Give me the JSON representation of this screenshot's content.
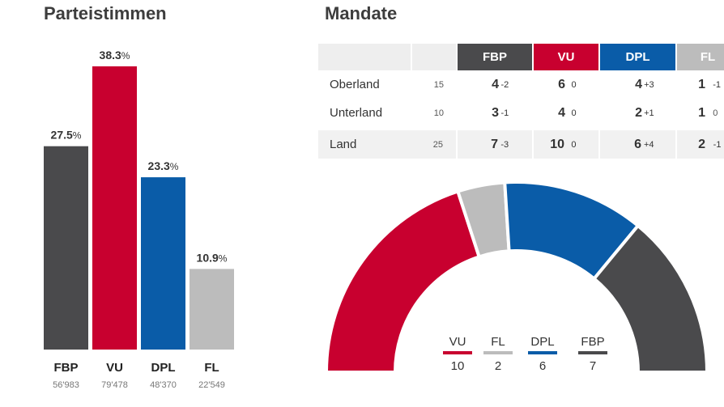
{
  "votes_title": "Parteistimmen",
  "mandate_title": "Mandate",
  "colors": {
    "FBP": "#4a4a4c",
    "VU": "#c8002f",
    "DPL": "#0a5ca8",
    "FL": "#bcbcbc"
  },
  "chart_data": [
    {
      "type": "bar",
      "title": "Parteistimmen",
      "categories": [
        "FBP",
        "VU",
        "DPL",
        "FL"
      ],
      "values": [
        27.5,
        38.3,
        23.3,
        10.9
      ],
      "value_unit": "%",
      "vote_counts": [
        "56'983",
        "79'478",
        "48'370",
        "22'549"
      ],
      "ylim": [
        0,
        38.3
      ],
      "grid": false,
      "legend": "none"
    },
    {
      "type": "pie",
      "title": "Mandate",
      "shape": "half-donut",
      "categories": [
        "VU",
        "FL",
        "DPL",
        "FBP"
      ],
      "values": [
        10,
        2,
        6,
        7
      ],
      "legend": "bottom-center"
    },
    {
      "type": "table",
      "title": "Mandate",
      "columns": [
        "FBP",
        "VU",
        "DPL",
        "FL"
      ],
      "rows": [
        {
          "region": "Oberland",
          "total": "15",
          "cells": [
            {
              "seats": "4",
              "change": "-2"
            },
            {
              "seats": "6",
              "change": "0"
            },
            {
              "seats": "4",
              "change": "+3"
            },
            {
              "seats": "1",
              "change": "-1"
            }
          ]
        },
        {
          "region": "Unterland",
          "total": "10",
          "cells": [
            {
              "seats": "3",
              "change": "-1"
            },
            {
              "seats": "4",
              "change": "0"
            },
            {
              "seats": "2",
              "change": "+1"
            },
            {
              "seats": "1",
              "change": "0"
            }
          ]
        },
        {
          "region": "Land",
          "total": "25",
          "cells": [
            {
              "seats": "7",
              "change": "-3"
            },
            {
              "seats": "10",
              "change": "0"
            },
            {
              "seats": "6",
              "change": "+4"
            },
            {
              "seats": "2",
              "change": "-1"
            }
          ]
        }
      ]
    }
  ]
}
